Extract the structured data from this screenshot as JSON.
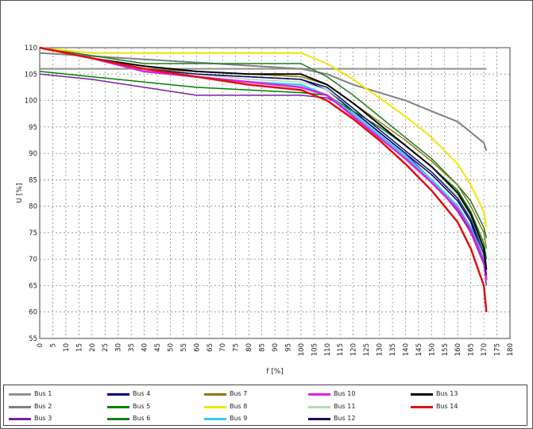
{
  "chart_data": {
    "type": "line",
    "title": "",
    "xlabel": "f [%]",
    "ylabel": "U [%]",
    "xlim": [
      0,
      180
    ],
    "ylim": [
      55,
      110
    ],
    "xticks": [
      0,
      5,
      10,
      15,
      20,
      25,
      30,
      35,
      40,
      45,
      50,
      55,
      60,
      65,
      70,
      75,
      80,
      85,
      90,
      95,
      100,
      105,
      110,
      115,
      120,
      125,
      130,
      135,
      140,
      145,
      150,
      155,
      160,
      165,
      170,
      175,
      180
    ],
    "yticks": [
      55,
      60,
      65,
      70,
      75,
      80,
      85,
      90,
      95,
      100,
      105,
      110
    ],
    "grid": true,
    "legend_placement": "bottom",
    "series": [
      {
        "name": "Bus 1",
        "color": "#909090",
        "width": 2,
        "points": [
          [
            0,
            106
          ],
          [
            100,
            106
          ],
          [
            171,
            106
          ]
        ]
      },
      {
        "name": "Bus 2",
        "color": "#808080",
        "width": 2,
        "points": [
          [
            0,
            109
          ],
          [
            100,
            106
          ],
          [
            110,
            105
          ],
          [
            120,
            103
          ],
          [
            130,
            101.5
          ],
          [
            140,
            100
          ],
          [
            150,
            98
          ],
          [
            160,
            96
          ],
          [
            165,
            94
          ],
          [
            170,
            92
          ],
          [
            171,
            90.5
          ]
        ]
      },
      {
        "name": "Bus 3",
        "color": "#7b1fa2",
        "width": 1.5,
        "points": [
          [
            0,
            105
          ],
          [
            20,
            104
          ],
          [
            40,
            102.5
          ],
          [
            60,
            101
          ],
          [
            80,
            101
          ],
          [
            100,
            101
          ],
          [
            110,
            100.5
          ],
          [
            120,
            98
          ],
          [
            130,
            94
          ],
          [
            140,
            90
          ],
          [
            150,
            85
          ],
          [
            160,
            79
          ],
          [
            165,
            75
          ],
          [
            170,
            69
          ],
          [
            171,
            65
          ]
        ]
      },
      {
        "name": "Bus 4",
        "color": "#000080",
        "width": 1.5,
        "points": [
          [
            0,
            110
          ],
          [
            20,
            108
          ],
          [
            40,
            106
          ],
          [
            60,
            105
          ],
          [
            80,
            104.5
          ],
          [
            100,
            104
          ],
          [
            110,
            102
          ],
          [
            120,
            98
          ],
          [
            130,
            94
          ],
          [
            140,
            90
          ],
          [
            150,
            86
          ],
          [
            160,
            81
          ],
          [
            165,
            77
          ],
          [
            170,
            70
          ],
          [
            171,
            66
          ]
        ]
      },
      {
        "name": "Bus 5",
        "color": "#008000",
        "width": 1.5,
        "points": [
          [
            0,
            105.5
          ],
          [
            20,
            104.5
          ],
          [
            40,
            103.5
          ],
          [
            60,
            102.5
          ],
          [
            80,
            102
          ],
          [
            100,
            101.5
          ],
          [
            110,
            101
          ],
          [
            120,
            98
          ],
          [
            130,
            95
          ],
          [
            140,
            91.5
          ],
          [
            150,
            87.5
          ],
          [
            160,
            83
          ],
          [
            165,
            79
          ],
          [
            170,
            73
          ],
          [
            171,
            70
          ]
        ]
      },
      {
        "name": "Bus 6",
        "color": "#1f7a1f",
        "width": 1.5,
        "points": [
          [
            0,
            110
          ],
          [
            20,
            108.5
          ],
          [
            40,
            107
          ],
          [
            60,
            107
          ],
          [
            80,
            107
          ],
          [
            100,
            107
          ],
          [
            110,
            104.5
          ],
          [
            120,
            101
          ],
          [
            130,
            97
          ],
          [
            140,
            93
          ],
          [
            150,
            89
          ],
          [
            160,
            84
          ],
          [
            165,
            81
          ],
          [
            170,
            76
          ],
          [
            171,
            74
          ]
        ]
      },
      {
        "name": "Bus 7",
        "color": "#8b7a10",
        "width": 1.5,
        "points": [
          [
            0,
            110
          ],
          [
            20,
            108
          ],
          [
            40,
            106
          ],
          [
            60,
            105.5
          ],
          [
            80,
            105
          ],
          [
            100,
            104.5
          ],
          [
            110,
            103
          ],
          [
            120,
            99.5
          ],
          [
            130,
            96
          ],
          [
            140,
            92.5
          ],
          [
            150,
            88.5
          ],
          [
            160,
            84
          ],
          [
            165,
            80
          ],
          [
            170,
            75
          ],
          [
            171,
            72
          ]
        ]
      },
      {
        "name": "Bus 8",
        "color": "#f2e600",
        "width": 2,
        "points": [
          [
            0,
            110
          ],
          [
            20,
            109
          ],
          [
            40,
            109
          ],
          [
            60,
            109
          ],
          [
            80,
            109
          ],
          [
            100,
            109
          ],
          [
            110,
            107
          ],
          [
            120,
            104
          ],
          [
            130,
            100.5
          ],
          [
            140,
            97
          ],
          [
            150,
            93
          ],
          [
            160,
            88
          ],
          [
            165,
            84
          ],
          [
            170,
            79
          ],
          [
            171,
            76
          ]
        ]
      },
      {
        "name": "Bus 9",
        "color": "#33ccee",
        "width": 2.5,
        "points": [
          [
            0,
            110
          ],
          [
            20,
            108
          ],
          [
            40,
            105.5
          ],
          [
            60,
            104.5
          ],
          [
            80,
            103.5
          ],
          [
            100,
            103
          ],
          [
            110,
            101
          ],
          [
            120,
            97.5
          ],
          [
            130,
            93.5
          ],
          [
            140,
            89.5
          ],
          [
            150,
            85
          ],
          [
            160,
            80
          ],
          [
            165,
            76
          ],
          [
            170,
            70
          ],
          [
            171,
            66
          ]
        ]
      },
      {
        "name": "Bus 10",
        "color": "#e020e0",
        "width": 2.5,
        "points": [
          [
            0,
            110
          ],
          [
            20,
            108
          ],
          [
            40,
            105.5
          ],
          [
            60,
            104.5
          ],
          [
            80,
            103.5
          ],
          [
            100,
            102.5
          ],
          [
            110,
            101
          ],
          [
            120,
            97
          ],
          [
            130,
            93
          ],
          [
            140,
            89
          ],
          [
            150,
            84.5
          ],
          [
            160,
            79.5
          ],
          [
            165,
            75.5
          ],
          [
            170,
            69.5
          ],
          [
            171,
            66
          ]
        ]
      },
      {
        "name": "Bus 11",
        "color": "#b0dcb0",
        "width": 1.5,
        "points": [
          [
            0,
            110
          ],
          [
            20,
            108
          ],
          [
            40,
            106
          ],
          [
            60,
            105
          ],
          [
            80,
            104
          ],
          [
            100,
            103.5
          ],
          [
            110,
            102
          ],
          [
            120,
            98.5
          ],
          [
            130,
            94.5
          ],
          [
            140,
            90.5
          ],
          [
            150,
            86.5
          ],
          [
            160,
            82
          ],
          [
            165,
            78
          ],
          [
            170,
            72
          ],
          [
            171,
            69
          ]
        ]
      },
      {
        "name": "Bus 12",
        "color": "#101060",
        "width": 1.5,
        "points": [
          [
            0,
            110
          ],
          [
            20,
            108
          ],
          [
            40,
            106
          ],
          [
            60,
            105
          ],
          [
            80,
            104.5
          ],
          [
            100,
            104
          ],
          [
            110,
            102.5
          ],
          [
            120,
            98.5
          ],
          [
            130,
            94.5
          ],
          [
            140,
            90.5
          ],
          [
            150,
            86.5
          ],
          [
            160,
            81.5
          ],
          [
            165,
            77.5
          ],
          [
            170,
            71
          ],
          [
            171,
            67
          ]
        ]
      },
      {
        "name": "Bus 13",
        "color": "#000000",
        "width": 2,
        "points": [
          [
            0,
            110
          ],
          [
            20,
            108
          ],
          [
            40,
            106.5
          ],
          [
            60,
            105.5
          ],
          [
            80,
            105
          ],
          [
            100,
            105
          ],
          [
            110,
            103
          ],
          [
            120,
            99.5
          ],
          [
            130,
            95.5
          ],
          [
            140,
            91.5
          ],
          [
            150,
            87.5
          ],
          [
            160,
            82.5
          ],
          [
            165,
            78.5
          ],
          [
            170,
            72
          ],
          [
            171,
            68
          ]
        ]
      },
      {
        "name": "Bus 14",
        "color": "#dd1111",
        "width": 2.5,
        "points": [
          [
            0,
            110
          ],
          [
            20,
            108
          ],
          [
            40,
            106
          ],
          [
            60,
            104.5
          ],
          [
            80,
            103
          ],
          [
            100,
            102
          ],
          [
            110,
            100
          ],
          [
            120,
            96.5
          ],
          [
            130,
            92.5
          ],
          [
            140,
            88
          ],
          [
            150,
            83
          ],
          [
            160,
            77
          ],
          [
            165,
            72
          ],
          [
            170,
            65
          ],
          [
            171,
            60
          ]
        ]
      }
    ]
  },
  "legend": [
    {
      "name": "Bus 1",
      "color": "#909090"
    },
    {
      "name": "Bus 4",
      "color": "#000080"
    },
    {
      "name": "Bus 7",
      "color": "#8b7a10"
    },
    {
      "name": "Bus 10",
      "color": "#e020e0"
    },
    {
      "name": "Bus 13",
      "color": "#000000"
    },
    {
      "name": "Bus 2",
      "color": "#808080"
    },
    {
      "name": "Bus 5",
      "color": "#008000"
    },
    {
      "name": "Bus 8",
      "color": "#f2e600"
    },
    {
      "name": "Bus 11",
      "color": "#b0dcb0"
    },
    {
      "name": "Bus 14",
      "color": "#dd1111"
    },
    {
      "name": "Bus 3",
      "color": "#7b1fa2"
    },
    {
      "name": "Bus 6",
      "color": "#1f7a1f"
    },
    {
      "name": "Bus 9",
      "color": "#33ccee"
    },
    {
      "name": "Bus 12",
      "color": "#101060"
    }
  ]
}
